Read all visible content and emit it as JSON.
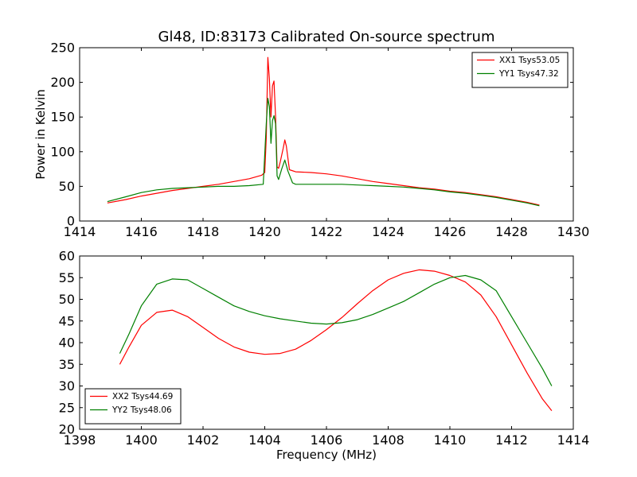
{
  "chart_data": {
    "type": "line",
    "title": "Gl48, ID:83173 Calibrated On-source spectrum",
    "panels": [
      {
        "xlabel": "",
        "ylabel": "Power in Kelvin",
        "xlim": [
          1414,
          1430
        ],
        "ylim": [
          0,
          250
        ],
        "xticks": [
          1414,
          1416,
          1418,
          1420,
          1422,
          1424,
          1426,
          1428,
          1430
        ],
        "yticks": [
          0,
          50,
          100,
          150,
          200,
          250
        ],
        "grid": false,
        "legend": "top-right",
        "series": [
          {
            "name": "XX1 Tsys53.05",
            "color": "#ff0000",
            "x": [
              1414.9,
              1415.5,
              1416.0,
              1416.5,
              1417.0,
              1417.5,
              1418.0,
              1418.5,
              1419.0,
              1419.5,
              1419.9,
              1420.0,
              1420.05,
              1420.1,
              1420.15,
              1420.2,
              1420.25,
              1420.3,
              1420.35,
              1420.4,
              1420.45,
              1420.5,
              1420.6,
              1420.65,
              1420.7,
              1420.8,
              1421.0,
              1421.5,
              1422.0,
              1422.5,
              1423.0,
              1423.5,
              1424.0,
              1424.5,
              1425.0,
              1425.5,
              1426.0,
              1426.5,
              1427.0,
              1427.5,
              1428.0,
              1428.5,
              1428.9
            ],
            "y": [
              26,
              31,
              36,
              40,
              44,
              47,
              50,
              53,
              57,
              61,
              66,
              70,
              120,
              236,
              205,
              150,
              195,
              202,
              150,
              78,
              76,
              85,
              105,
              117,
              108,
              74,
              71,
              70,
              68,
              65,
              61,
              57,
              54,
              51,
              48,
              46,
              43,
              41,
              38,
              35,
              31,
              27,
              23
            ]
          },
          {
            "name": "YY1 Tsys47.32",
            "color": "#008000",
            "x": [
              1414.9,
              1415.5,
              1416.0,
              1416.5,
              1417.0,
              1417.5,
              1418.0,
              1418.5,
              1419.0,
              1419.5,
              1419.95,
              1420.05,
              1420.1,
              1420.15,
              1420.2,
              1420.25,
              1420.3,
              1420.35,
              1420.4,
              1420.45,
              1420.55,
              1420.65,
              1420.75,
              1420.9,
              1421.0,
              1421.5,
              1422.0,
              1422.5,
              1423.0,
              1423.5,
              1424.0,
              1424.5,
              1425.0,
              1425.5,
              1426.0,
              1426.5,
              1427.0,
              1427.5,
              1428.0,
              1428.5,
              1428.9
            ],
            "y": [
              28,
              35,
              41,
              45,
              47,
              48,
              49,
              50,
              50,
              51,
              53,
              140,
              177,
              165,
              112,
              145,
              152,
              140,
              65,
              60,
              75,
              88,
              72,
              55,
              53,
              53,
              53,
              53,
              52,
              51,
              50,
              49,
              47,
              45,
              42,
              40,
              37,
              34,
              30,
              26,
              22
            ]
          }
        ]
      },
      {
        "xlabel": "Frequency (MHz)",
        "ylabel": "",
        "xlim": [
          1398,
          1414
        ],
        "ylim": [
          20,
          60
        ],
        "xticks": [
          1398,
          1400,
          1402,
          1404,
          1406,
          1408,
          1410,
          1412,
          1414
        ],
        "yticks": [
          20,
          25,
          30,
          35,
          40,
          45,
          50,
          55,
          60
        ],
        "grid": false,
        "legend": "bottom-left",
        "series": [
          {
            "name": "XX2 Tsys44.69",
            "color": "#ff0000",
            "x": [
              1399.3,
              1399.6,
              1400.0,
              1400.5,
              1401.0,
              1401.5,
              1402.0,
              1402.5,
              1403.0,
              1403.5,
              1404.0,
              1404.5,
              1405.0,
              1405.5,
              1406.0,
              1406.5,
              1407.0,
              1407.5,
              1408.0,
              1408.5,
              1409.0,
              1409.5,
              1410.0,
              1410.5,
              1411.0,
              1411.5,
              1412.0,
              1412.5,
              1413.0,
              1413.3
            ],
            "y": [
              35,
              39,
              44,
              47,
              47.5,
              46,
              43.5,
              41,
              39,
              37.8,
              37.3,
              37.5,
              38.5,
              40.5,
              43,
              45.8,
              49,
              52,
              54.5,
              56,
              56.8,
              56.5,
              55.5,
              54,
              51,
              46,
              39.5,
              33,
              27,
              24.3
            ]
          },
          {
            "name": "YY2 Tsys48.06",
            "color": "#008000",
            "x": [
              1399.3,
              1399.6,
              1400.0,
              1400.5,
              1401.0,
              1401.5,
              1402.0,
              1402.5,
              1403.0,
              1403.5,
              1404.0,
              1404.5,
              1405.0,
              1405.5,
              1406.0,
              1406.5,
              1407.0,
              1407.5,
              1408.0,
              1408.5,
              1409.0,
              1409.5,
              1410.0,
              1410.5,
              1411.0,
              1411.5,
              1412.0,
              1412.5,
              1413.0,
              1413.3
            ],
            "y": [
              37.5,
              42,
              48.5,
              53.5,
              54.7,
              54.5,
              52.5,
              50.5,
              48.5,
              47.2,
              46.2,
              45.5,
              45,
              44.5,
              44.3,
              44.6,
              45.3,
              46.5,
              48,
              49.5,
              51.5,
              53.5,
              55,
              55.5,
              54.5,
              52,
              46,
              40,
              34,
              30
            ]
          }
        ]
      }
    ]
  }
}
